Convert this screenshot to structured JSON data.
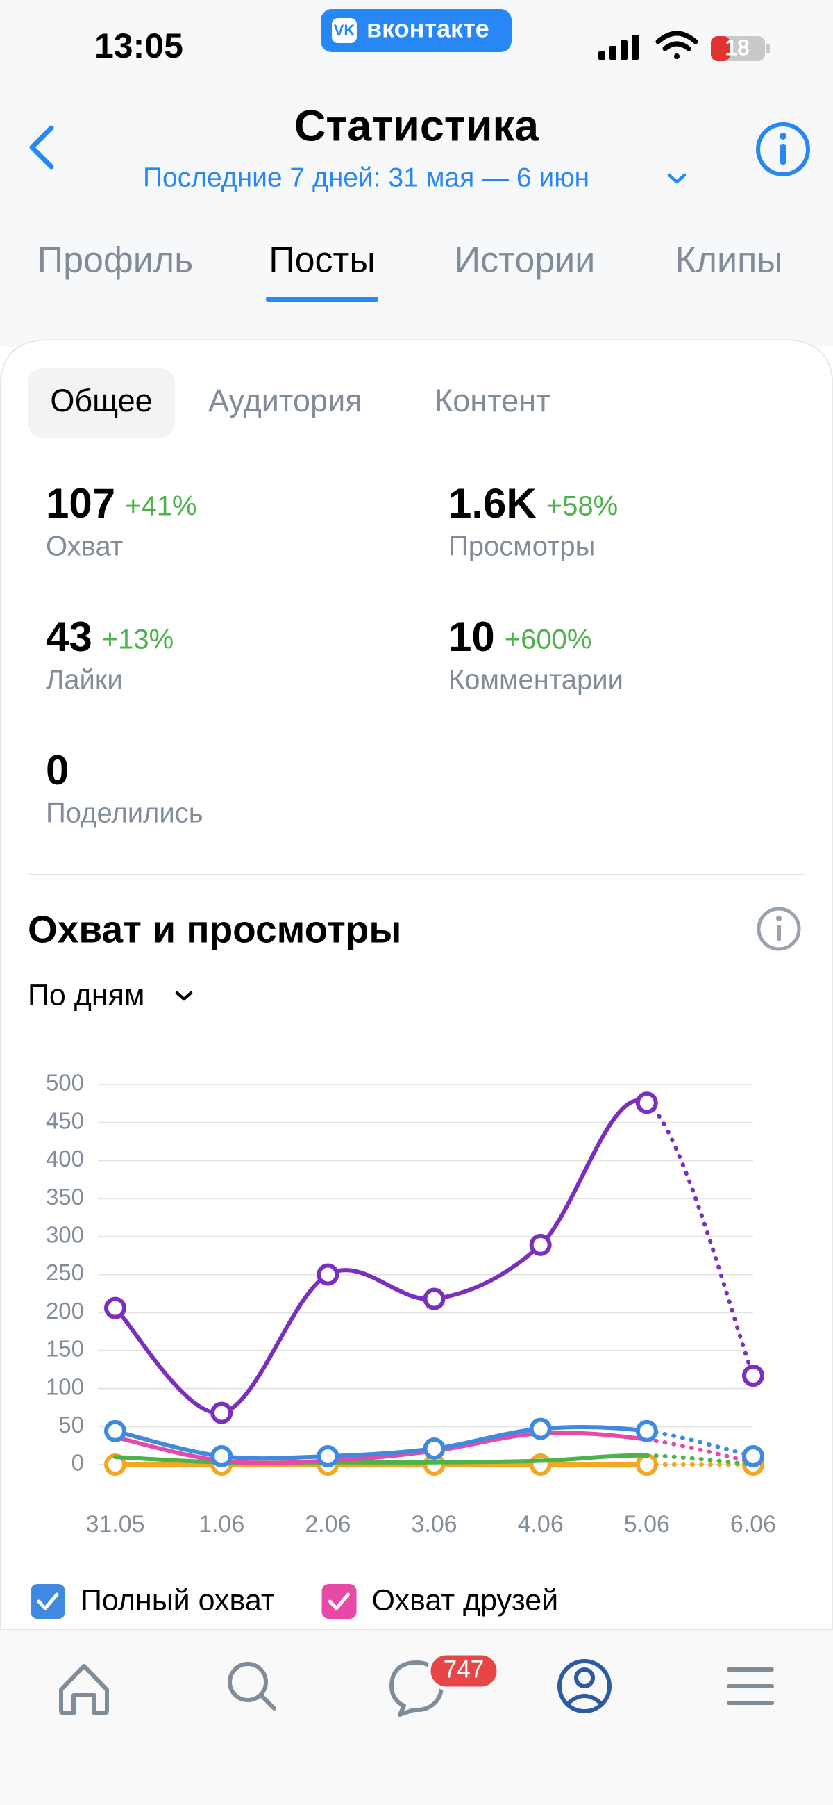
{
  "status_bar": {
    "time": "13:05",
    "app": "вконтакте",
    "battery": "18"
  },
  "header": {
    "title": "Статистика",
    "period": "Последние 7 дней: 31 мая — 6 июн"
  },
  "tabs": [
    "Профиль",
    "Посты",
    "Истории",
    "Клипы"
  ],
  "subtabs": [
    "Общее",
    "Аудитория",
    "Контент"
  ],
  "stats": [
    {
      "value": 107,
      "change": "+41%",
      "label": "Охват"
    },
    {
      "value": "1.6K",
      "change": "+58%",
      "label": "Просмотры"
    },
    {
      "value": 43,
      "change": "+13%",
      "label": "Лайки"
    },
    {
      "value": 10,
      "change": "+600%",
      "label": "Комментарии"
    },
    {
      "value": 0,
      "label": "Поделились"
    }
  ],
  "section": {
    "title": "Охват и просмотры",
    "period": "По дням"
  },
  "chart_data": {
    "type": "line",
    "categories": [
      "31.05",
      "1.06",
      "2.06",
      "3.06",
      "4.06",
      "5.06",
      "6.06"
    ],
    "ylim": [
      0,
      500
    ],
    "yticks": [
      0,
      50,
      100,
      150,
      200,
      250,
      300,
      350,
      400,
      450,
      500
    ],
    "grid": true,
    "series": [
      {
        "name": "Полный охват",
        "color": "#3f8ae0",
        "markers": true,
        "values": [
          44,
          11,
          11,
          21,
          47,
          44,
          11
        ]
      },
      {
        "name": "Охват друзей",
        "color": "#e64aa6",
        "markers": false,
        "values": [
          36,
          5,
          5,
          18,
          41,
          33,
          3
        ]
      },
      {
        "color": "#7a2fbf",
        "markers": true,
        "values": [
          206,
          68,
          250,
          218,
          289,
          476,
          117
        ]
      },
      {
        "color": "#4bb34b",
        "markers": false,
        "values": [
          10,
          3,
          3,
          3,
          5,
          12,
          0
        ]
      },
      {
        "color": "#f5a623",
        "markers": true,
        "values": [
          0,
          0,
          0,
          0,
          0,
          0,
          0
        ]
      }
    ]
  },
  "nav": {
    "badge": "747"
  }
}
